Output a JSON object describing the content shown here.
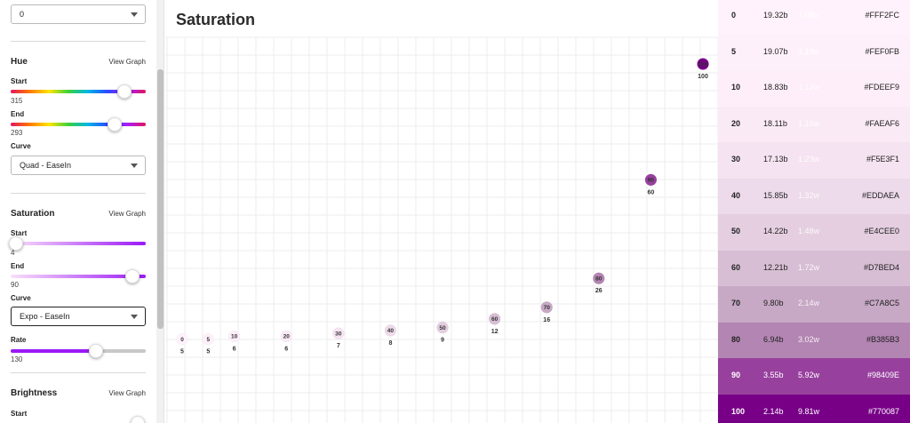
{
  "sidebar": {
    "top_select": {
      "value": "0"
    },
    "hue": {
      "title": "Hue",
      "view_graph": "View Graph",
      "start_label": "Start",
      "start_value": "315",
      "start_frac": 0.84,
      "end_label": "End",
      "end_value": "293",
      "end_frac": 0.77,
      "curve_label": "Curve",
      "curve_value": "Quad - EaseIn"
    },
    "saturation": {
      "title": "Saturation",
      "view_graph": "View Graph",
      "start_label": "Start",
      "start_value": "4",
      "start_frac": 0.04,
      "end_label": "End",
      "end_value": "90",
      "end_frac": 0.9,
      "curve_label": "Curve",
      "curve_value": "Expo - EaseIn",
      "rate_label": "Rate",
      "rate_value": "130",
      "rate_frac": 0.63
    },
    "brightness": {
      "title": "Brightness",
      "view_graph": "View Graph",
      "start_label": "Start"
    }
  },
  "main": {
    "title": "Saturation"
  },
  "chart_data": {
    "type": "scatter",
    "title": "Saturation",
    "xlabel": "",
    "ylabel": "",
    "xlim": [
      0,
      100
    ],
    "ylim": [
      0,
      100
    ],
    "grid": true,
    "points": [
      {
        "x": 0,
        "y": 5
      },
      {
        "x": 5,
        "y": 5
      },
      {
        "x": 10,
        "y": 6
      },
      {
        "x": 20,
        "y": 6
      },
      {
        "x": 30,
        "y": 7
      },
      {
        "x": 40,
        "y": 8
      },
      {
        "x": 50,
        "y": 9
      },
      {
        "x": 60,
        "y": 12
      },
      {
        "x": 70,
        "y": 16
      },
      {
        "x": 80,
        "y": 26
      },
      {
        "x": 90,
        "y": 60
      },
      {
        "x": 100,
        "y": 100
      }
    ]
  },
  "palette": [
    {
      "step": "0",
      "black": "19.32b",
      "white": "1.08w",
      "hex": "#FFF2FC",
      "text": "dark"
    },
    {
      "step": "5",
      "black": "19.07b",
      "white": "1.10w",
      "hex": "#FEF0FB",
      "text": "dark"
    },
    {
      "step": "10",
      "black": "18.83b",
      "white": "1.12w",
      "hex": "#FDEEF9",
      "text": "dark"
    },
    {
      "step": "20",
      "black": "18.11b",
      "white": "1.16w",
      "hex": "#FAEAF6",
      "text": "dark"
    },
    {
      "step": "30",
      "black": "17.13b",
      "white": "1.23w",
      "hex": "#F5E3F1",
      "text": "dark"
    },
    {
      "step": "40",
      "black": "15.85b",
      "white": "1.32w",
      "hex": "#EDDAEA",
      "text": "dark"
    },
    {
      "step": "50",
      "black": "14.22b",
      "white": "1.48w",
      "hex": "#E4CEE0",
      "text": "dark"
    },
    {
      "step": "60",
      "black": "12.21b",
      "white": "1.72w",
      "hex": "#D7BED4",
      "text": "dark"
    },
    {
      "step": "70",
      "black": "9.80b",
      "white": "2.14w",
      "hex": "#C7A8C5",
      "text": "dark"
    },
    {
      "step": "80",
      "black": "6.94b",
      "white": "3.02w",
      "hex": "#B385B3",
      "text": "dark"
    },
    {
      "step": "90",
      "black": "3.55b",
      "white": "5.92w",
      "hex": "#98409E",
      "text": "light"
    },
    {
      "step": "100",
      "black": "2.14b",
      "white": "9.81w",
      "hex": "#770087",
      "text": "light"
    }
  ]
}
